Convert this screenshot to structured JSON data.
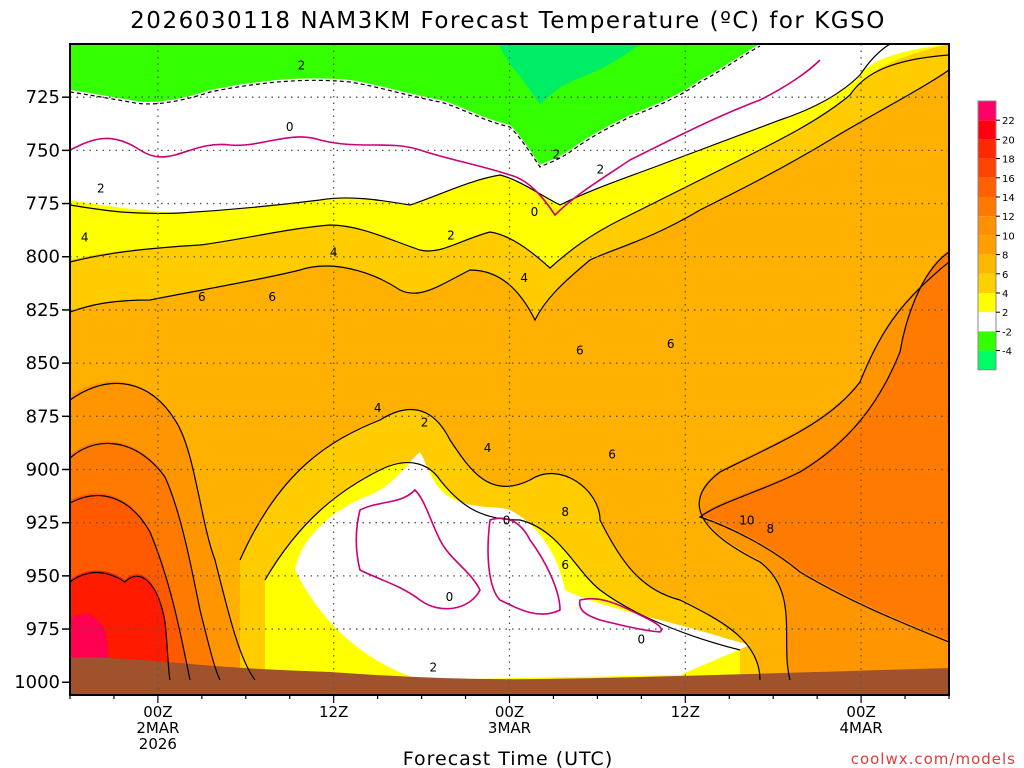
{
  "chart_data": {
    "type": "heatmap",
    "title": "2026030118 NAM3KM Forecast Temperature (ºC) for KGSO",
    "xlabel": "Forecast Time (UTC)",
    "ylabel": "",
    "y_reversed": true,
    "y_ticks": [
      725,
      750,
      775,
      800,
      825,
      850,
      875,
      900,
      925,
      950,
      975,
      1000
    ],
    "x_ticks": [
      {
        "hour": 6,
        "lines": [
          "00Z",
          "2MAR",
          "2026"
        ]
      },
      {
        "hour": 18,
        "lines": [
          "12Z"
        ]
      },
      {
        "hour": 30,
        "lines": [
          "00Z",
          "3MAR"
        ]
      },
      {
        "hour": 42,
        "lines": [
          "12Z"
        ]
      },
      {
        "hour": 54,
        "lines": [
          "00Z",
          "4MAR"
        ]
      }
    ],
    "xlim": [
      0,
      60
    ],
    "ylim": [
      1006,
      700
    ],
    "grid": true,
    "colorbar": {
      "labels": [
        22,
        20,
        18,
        16,
        14,
        12,
        10,
        8,
        6,
        4,
        2,
        -2,
        -4
      ],
      "colors": [
        "#ff0066",
        "#ff0010",
        "#ff2800",
        "#ff4400",
        "#ff6000",
        "#ff7800",
        "#ff9000",
        "#ffa000",
        "#ffb800",
        "#ffd000",
        "#ffff00",
        "#ffffff",
        "#33ff00",
        "#00ff66"
      ]
    },
    "contour_labels": [
      {
        "x": 15.8,
        "y": 710,
        "t": "2"
      },
      {
        "x": 15.0,
        "y": 739,
        "t": "0"
      },
      {
        "x": 2.1,
        "y": 768,
        "t": "2"
      },
      {
        "x": 1.0,
        "y": 791,
        "t": "4"
      },
      {
        "x": 18.0,
        "y": 798,
        "t": "4"
      },
      {
        "x": 9.0,
        "y": 819,
        "t": "6"
      },
      {
        "x": 13.8,
        "y": 819,
        "t": "6"
      },
      {
        "x": 26.0,
        "y": 790,
        "t": "2"
      },
      {
        "x": 31.0,
        "y": 810,
        "t": "4"
      },
      {
        "x": 36.2,
        "y": 759,
        "t": "2"
      },
      {
        "x": 33.2,
        "y": 752,
        "t": "2"
      },
      {
        "x": 31.7,
        "y": 779,
        "t": "0"
      },
      {
        "x": 34.8,
        "y": 844,
        "t": "6"
      },
      {
        "x": 41.0,
        "y": 841,
        "t": "6"
      },
      {
        "x": 21.0,
        "y": 871,
        "t": "4"
      },
      {
        "x": 24.2,
        "y": 878,
        "t": "2"
      },
      {
        "x": 28.5,
        "y": 890,
        "t": "4"
      },
      {
        "x": 29.8,
        "y": 924,
        "t": "0"
      },
      {
        "x": 33.8,
        "y": 920,
        "t": "8"
      },
      {
        "x": 37.0,
        "y": 893,
        "t": "6"
      },
      {
        "x": 33.8,
        "y": 945,
        "t": "6"
      },
      {
        "x": 25.9,
        "y": 960,
        "t": "0"
      },
      {
        "x": 39.0,
        "y": 980,
        "t": "0"
      },
      {
        "x": 24.8,
        "y": 993,
        "t": "2"
      },
      {
        "x": 46.2,
        "y": 924,
        "t": "10"
      },
      {
        "x": 47.8,
        "y": 928,
        "t": "8"
      }
    ],
    "watermark": "coolwx.com/models"
  }
}
